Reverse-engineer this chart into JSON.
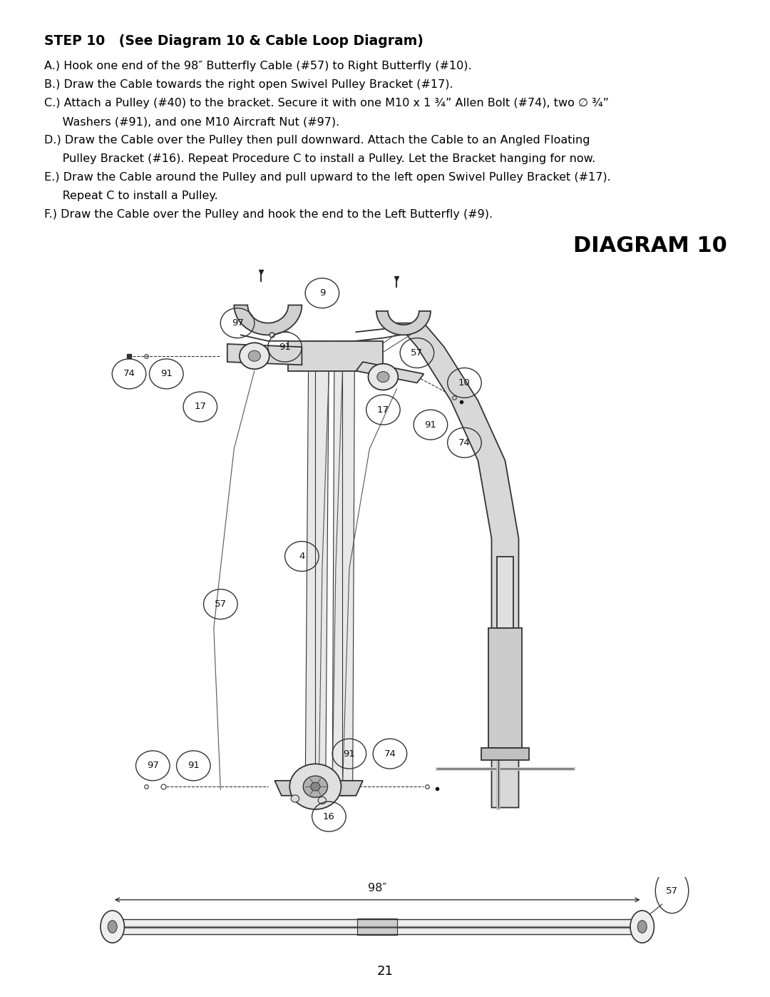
{
  "page_bg": "#ffffff",
  "title_bold": "STEP 10   (See Diagram 10 & Cable Loop Diagram)",
  "line_A": "A.) Hook one end of the 98″ Butterfly Cable (#57) to Right Butterfly (#10).",
  "line_B": "B.) Draw the Cable towards the right open Swivel Pulley Bracket (#17).",
  "line_C1": "C.) Attach a Pulley (#40) to the bracket. Secure it with one M10 x 1 ¾” Allen Bolt (#74), two ∅ ¾”",
  "line_C2": "     Washers (#91), and one M10 Aircraft Nut (#97).",
  "line_D1": "D.) Draw the Cable over the Pulley then pull downward. Attach the Cable to an Angled Floating",
  "line_D2": "     Pulley Bracket (#16). Repeat Procedure C to install a Pulley. Let the Bracket hanging for now.",
  "line_E1": "E.) Draw the Cable around the Pulley and pull upward to the left open Swivel Pulley Bracket (#17).",
  "line_E2": "     Repeat C to install a Pulley.",
  "line_F": "F.) Draw the Cable over the Pulley and hook the end to the Left Butterfly (#9).",
  "diagram_title": "DIAGRAM 10",
  "page_number": "21",
  "text_color": "#000000",
  "lc": "#333333",
  "lc_light": "#888888"
}
